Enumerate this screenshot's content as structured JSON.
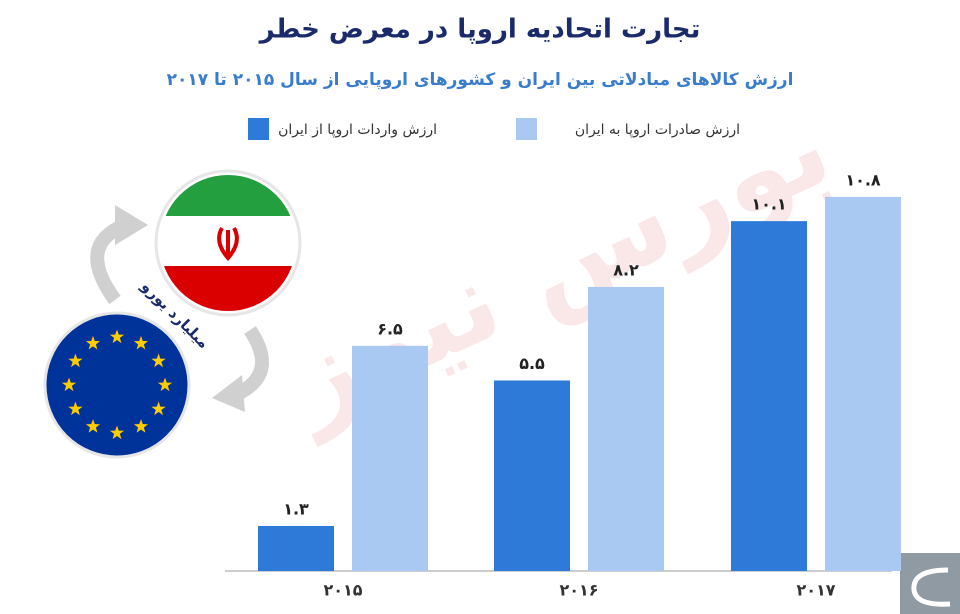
{
  "chart_data": {
    "type": "bar",
    "title": "تجارت اتحادیه اروپا در معرض خطر",
    "subtitle": "ارزش کالاهای مبادلاتی بین ایران و کشورهای اروپایی از سال ۲۰۱۵ تا ۲۰۱۷",
    "annotation": "میلیارد یورو",
    "watermark": "بورس نیوز",
    "categories": [
      "۲۰۱۵",
      "۲۰۱۶",
      "۲۰۱۷"
    ],
    "series": [
      {
        "name": "ارزش واردات اروپا از ایران",
        "color": "#2e7ad8",
        "values": [
          1.3,
          5.5,
          10.1
        ],
        "value_labels": [
          "۱.۳",
          "۵.۵",
          "۱۰.۱"
        ]
      },
      {
        "name": "ارزش صادرات اروپا به ایران",
        "color": "#a9c9f2",
        "values": [
          6.5,
          8.2,
          10.8
        ],
        "value_labels": [
          "۶.۵",
          "۸.۲",
          "۱۰.۸"
        ]
      }
    ],
    "ylim": [
      0,
      12.5
    ]
  }
}
